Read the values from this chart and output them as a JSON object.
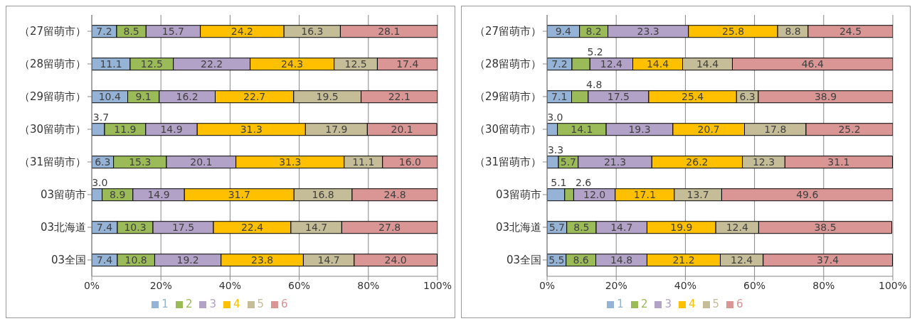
{
  "chart_data": [
    {
      "type": "bar",
      "orientation": "horizontal",
      "stacked": true,
      "categories": [
        "（27留萌市）",
        "（28留萌市）",
        "（29留萌市）",
        "（30留萌市）",
        "（31留萌市）",
        "03留萌市",
        "03北海道",
        "03全国"
      ],
      "series": [
        {
          "name": "1",
          "color": "#95b3d7",
          "values": [
            7.2,
            11.1,
            10.4,
            3.7,
            6.3,
            3.0,
            7.4,
            7.4
          ],
          "value_labels": [
            "7.2",
            "11.1",
            "10.4",
            "3.7",
            "6.3",
            "3.0",
            "7.4",
            "7.4"
          ]
        },
        {
          "name": "2",
          "color": "#9bbb59",
          "values": [
            8.5,
            12.5,
            9.1,
            11.9,
            15.3,
            8.9,
            10.3,
            10.8
          ],
          "value_labels": [
            "8.5",
            "12.5",
            "9.1",
            "11.9",
            "15.3",
            "8.9",
            "10.3",
            "10.8"
          ]
        },
        {
          "name": "3",
          "color": "#b3a2c7",
          "values": [
            15.7,
            22.2,
            16.2,
            14.9,
            20.1,
            14.9,
            17.5,
            19.2
          ],
          "value_labels": [
            "15.7",
            "22.2",
            "16.2",
            "14.9",
            "20.1",
            "14.9",
            "17.5",
            "19.2"
          ]
        },
        {
          "name": "4",
          "color": "#ffc000",
          "values": [
            24.2,
            24.3,
            22.7,
            31.3,
            31.3,
            31.7,
            22.4,
            23.8
          ],
          "value_labels": [
            "24.2",
            "24.3",
            "22.7",
            "31.3",
            "31.3",
            "31.7",
            "22.4",
            "23.8"
          ]
        },
        {
          "name": "5",
          "color": "#c4bd97",
          "values": [
            16.3,
            12.5,
            19.5,
            17.9,
            11.1,
            16.8,
            14.7,
            14.7
          ],
          "value_labels": [
            "16.3",
            "12.5",
            "19.5",
            "17.9",
            "11.1",
            "16.8",
            "14.7",
            "14.7"
          ]
        },
        {
          "name": "6",
          "color": "#d99694",
          "values": [
            28.1,
            17.4,
            22.1,
            20.1,
            16.0,
            24.8,
            27.8,
            24.0
          ],
          "value_labels": [
            "28.1",
            "17.4",
            "22.1",
            "20.1",
            "16.0",
            "24.8",
            "27.8",
            "24.0"
          ]
        }
      ],
      "xlim": [
        0,
        100
      ],
      "xticks": [
        {
          "value": 0,
          "label": "0%"
        },
        {
          "value": 20,
          "label": "20%"
        },
        {
          "value": 40,
          "label": "40%"
        },
        {
          "value": 60,
          "label": "60%"
        },
        {
          "value": 80,
          "label": "80%"
        },
        {
          "value": 100,
          "label": "100%"
        }
      ],
      "grid": "x",
      "legend": "bottom"
    },
    {
      "type": "bar",
      "orientation": "horizontal",
      "stacked": true,
      "categories": [
        "（27留萌市）",
        "（28留萌市）",
        "（29留萌市）",
        "（30留萌市）",
        "（31留萌市）",
        "03留萌市",
        "03北海道",
        "03全国"
      ],
      "series": [
        {
          "name": "1",
          "color": "#95b3d7",
          "values": [
            9.4,
            7.2,
            7.1,
            3.0,
            3.3,
            5.1,
            5.7,
            5.5
          ],
          "value_labels": [
            "9.4",
            "7.2",
            "7.1",
            "3.0",
            "3.3",
            "5.1",
            "5.7",
            "5.5"
          ]
        },
        {
          "name": "2",
          "color": "#9bbb59",
          "values": [
            8.2,
            5.2,
            4.8,
            14.1,
            5.7,
            2.6,
            8.5,
            8.6
          ],
          "value_labels": [
            "8.2",
            "5.2",
            "4.8",
            "14.1",
            "5.7",
            "2.6",
            "8.5",
            "8.6"
          ]
        },
        {
          "name": "3",
          "color": "#b3a2c7",
          "values": [
            23.3,
            12.4,
            17.5,
            19.3,
            21.3,
            12.0,
            14.7,
            14.8
          ],
          "value_labels": [
            "23.3",
            "12.4",
            "17.5",
            "19.3",
            "21.3",
            "12.0",
            "14.7",
            "14.8"
          ]
        },
        {
          "name": "4",
          "color": "#ffc000",
          "values": [
            25.8,
            14.4,
            25.4,
            20.7,
            26.2,
            17.1,
            19.9,
            21.2
          ],
          "value_labels": [
            "25.8",
            "14.4",
            "25.4",
            "20.7",
            "26.2",
            "17.1",
            "19.9",
            "21.2"
          ]
        },
        {
          "name": "5",
          "color": "#c4bd97",
          "values": [
            8.8,
            14.4,
            6.3,
            17.8,
            12.3,
            13.7,
            12.4,
            12.4
          ],
          "value_labels": [
            "8.8",
            "14.4",
            "6.3",
            "17.8",
            "12.3",
            "13.7",
            "12.4",
            "12.4"
          ]
        },
        {
          "name": "6",
          "color": "#d99694",
          "values": [
            24.5,
            46.4,
            38.9,
            25.2,
            31.1,
            49.6,
            38.5,
            37.4
          ],
          "value_labels": [
            "24.5",
            "46.4",
            "38.9",
            "25.2",
            "31.1",
            "49.6",
            "38.5",
            "37.4"
          ]
        }
      ],
      "xlim": [
        0,
        100
      ],
      "xticks": [
        {
          "value": 0,
          "label": "0%"
        },
        {
          "value": 20,
          "label": "20%"
        },
        {
          "value": 40,
          "label": "40%"
        },
        {
          "value": 60,
          "label": "60%"
        },
        {
          "value": 80,
          "label": "80%"
        },
        {
          "value": 100,
          "label": "100%"
        }
      ],
      "grid": "x",
      "legend": "bottom"
    }
  ]
}
